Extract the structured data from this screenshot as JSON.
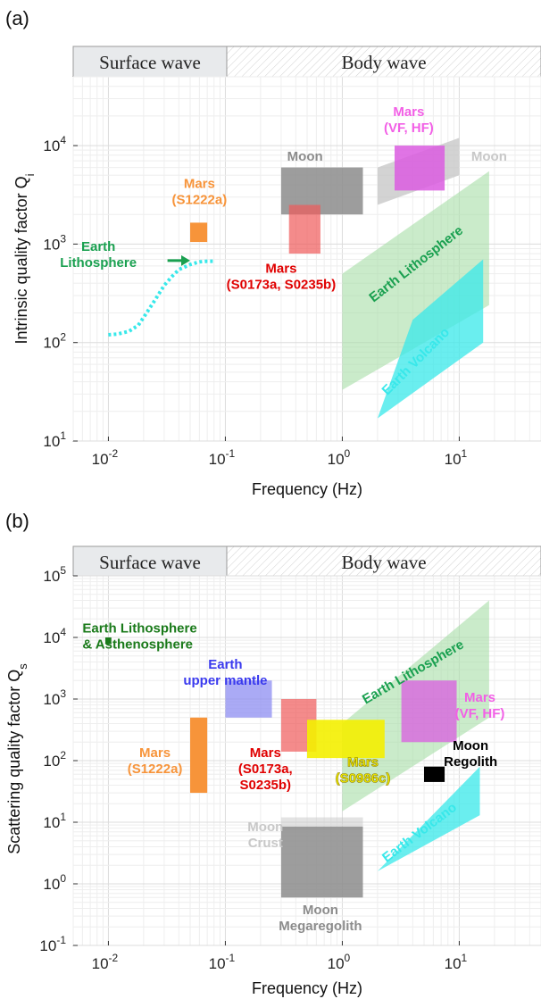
{
  "colors": {
    "mars_orange": "#f7943a",
    "mars_red": "#f05a5a",
    "mars_red_text": "#e00000",
    "mars_magenta": "#da5ce0",
    "mars_magenta_text": "#f25fe6",
    "moon_gray": "#8c8c8c",
    "moon_light": "#c8c8c8",
    "earth_green": "#a6dea6",
    "earth_green_text": "#1aa050",
    "earth_dark_green": "#1a7a1a",
    "earth_cyan": "#38e8ea",
    "earth_blue": "#8e8ef2",
    "earth_blue_text": "#3a3aee",
    "mars_yellow": "#f4f000",
    "black": "#000000"
  },
  "chart_data": [
    {
      "panel_label": "(a)",
      "type": "area",
      "bands": {
        "surface": "Surface wave",
        "body": "Body wave",
        "boundary_hz": 0.1
      },
      "xlabel": "Frequency (Hz)",
      "ylabel": "Intrinsic quality factor Q",
      "ylabel_sub": "i",
      "xscale": "log",
      "yscale": "log",
      "xlim": [
        0.005,
        50
      ],
      "ylim": [
        10,
        50000
      ],
      "x_ticks": [
        0.01,
        0.1,
        1,
        10
      ],
      "x_tick_labels": [
        {
          "base": "10",
          "exp": "-2"
        },
        {
          "base": "10",
          "exp": "-1"
        },
        {
          "base": "10",
          "exp": "0"
        },
        {
          "base": "10",
          "exp": "1"
        }
      ],
      "y_ticks": [
        10,
        100,
        1000,
        10000
      ],
      "y_tick_labels": [
        {
          "base": "10",
          "exp": "1"
        },
        {
          "base": "10",
          "exp": "2"
        },
        {
          "base": "10",
          "exp": "3"
        },
        {
          "base": "10",
          "exp": "4"
        }
      ],
      "grid": true,
      "regions": [
        {
          "name": "Earth Lithosphere (band)",
          "shape": "polygon",
          "color": "earth_green",
          "opacity": 0.6,
          "points": [
            [
              1,
              33
            ],
            [
              1,
              500
            ],
            [
              18,
              5500
            ],
            [
              18,
              240
            ]
          ]
        },
        {
          "name": "Earth Volcano (band)",
          "shape": "polygon",
          "color": "earth_cyan",
          "opacity": 0.75,
          "points": [
            [
              2,
              17
            ],
            [
              4,
              170
            ],
            [
              16,
              700
            ],
            [
              16,
              100
            ]
          ]
        },
        {
          "name": "Moon (band)",
          "shape": "polygon",
          "color": "moon_light",
          "opacity": 0.8,
          "points": [
            [
              2,
              2500
            ],
            [
              2,
              6000
            ],
            [
              10,
              12000
            ],
            [
              10,
              5000
            ]
          ]
        },
        {
          "name": "Moon (box)",
          "shape": "rect",
          "color": "moon_gray",
          "opacity": 0.85,
          "x": [
            0.3,
            1.5
          ],
          "y": [
            2000,
            6000
          ]
        },
        {
          "name": "Mars (S0173a, S0235b)",
          "shape": "rect",
          "color": "mars_red",
          "opacity": 0.7,
          "x": [
            0.35,
            0.65
          ],
          "y": [
            800,
            2500
          ]
        },
        {
          "name": "Mars (VF, HF)",
          "shape": "rect",
          "color": "mars_magenta",
          "opacity": 0.85,
          "x": [
            2.8,
            7.5
          ],
          "y": [
            3500,
            10000
          ]
        },
        {
          "name": "Mars (S1222a)",
          "shape": "rect",
          "color": "mars_orange",
          "opacity": 1.0,
          "x": [
            0.05,
            0.07
          ],
          "y": [
            1050,
            1650
          ]
        }
      ],
      "curves": [
        {
          "name": "Earth Lithosphere",
          "style": "dotted",
          "color": "earth_cyan",
          "x": [
            0.01,
            0.012,
            0.015,
            0.018,
            0.02,
            0.025,
            0.03,
            0.035,
            0.04,
            0.05,
            0.06,
            0.07,
            0.08
          ],
          "y": [
            120,
            122,
            130,
            150,
            180,
            270,
            380,
            470,
            550,
            620,
            660,
            670,
            670
          ]
        }
      ],
      "arrows": [
        {
          "color": "earth_green_text",
          "from": [
            0.032,
            680
          ],
          "to": [
            0.05,
            680
          ]
        }
      ],
      "annotations": [
        {
          "lines": [
            "Mars",
            "(S1222a)"
          ],
          "color": "mars_orange",
          "x": 0.06,
          "y": 3700
        },
        {
          "lines": [
            "Earth",
            "Lithosphere"
          ],
          "color": "earth_green_text",
          "x": 0.0082,
          "y": 850
        },
        {
          "lines": [
            "Mars",
            "(S0173a, S0235b)"
          ],
          "color": "mars_red_text",
          "x": 0.3,
          "y": 510
        },
        {
          "lines": [
            "Moon"
          ],
          "color": "moon_gray",
          "x": 0.48,
          "y": 7000
        },
        {
          "lines": [
            "Mars",
            "(VF, HF)"
          ],
          "color": "mars_magenta_text",
          "x": 3.7,
          "y": 20000
        },
        {
          "lines": [
            "Moon"
          ],
          "color": "moon_light",
          "x": 18,
          "y": 7000
        },
        {
          "lines": [
            "Earth Lithosphere"
          ],
          "color": "earth_green_text",
          "x": 4.5,
          "y": 580,
          "rotate": -38
        },
        {
          "lines": [
            "Earth Volcano"
          ],
          "color": "earth_cyan",
          "x": 4.5,
          "y": 60,
          "rotate": -45
        }
      ]
    },
    {
      "panel_label": "(b)",
      "type": "area",
      "bands": {
        "surface": "Surface wave",
        "body": "Body wave",
        "boundary_hz": 0.1
      },
      "xlabel": "Frequency (Hz)",
      "ylabel": "Scattering quality factor Q",
      "ylabel_sub": "s",
      "xscale": "log",
      "yscale": "log",
      "xlim": [
        0.005,
        50
      ],
      "ylim": [
        0.1,
        100000
      ],
      "x_ticks": [
        0.01,
        0.1,
        1,
        10
      ],
      "x_tick_labels": [
        {
          "base": "10",
          "exp": "-2"
        },
        {
          "base": "10",
          "exp": "-1"
        },
        {
          "base": "10",
          "exp": "0"
        },
        {
          "base": "10",
          "exp": "1"
        }
      ],
      "y_ticks": [
        0.1,
        1,
        10,
        100,
        1000,
        10000,
        100000
      ],
      "y_tick_labels": [
        {
          "base": "10",
          "exp": "-1"
        },
        {
          "base": "10",
          "exp": "0"
        },
        {
          "base": "10",
          "exp": "1"
        },
        {
          "base": "10",
          "exp": "2"
        },
        {
          "base": "10",
          "exp": "3"
        },
        {
          "base": "10",
          "exp": "4"
        },
        {
          "base": "10",
          "exp": "5"
        }
      ],
      "grid": true,
      "regions": [
        {
          "name": "Earth Lithosphere (band)",
          "shape": "polygon",
          "color": "earth_green",
          "opacity": 0.6,
          "points": [
            [
              1,
              15
            ],
            [
              1,
              400
            ],
            [
              18,
              40000
            ],
            [
              18,
              500
            ]
          ]
        },
        {
          "name": "Earth Volcano (band)",
          "shape": "polygon",
          "color": "earth_cyan",
          "opacity": 0.75,
          "points": [
            [
              2,
              1.6
            ],
            [
              15,
              80
            ],
            [
              15,
              13
            ]
          ]
        },
        {
          "name": "Moon Crust",
          "shape": "rect",
          "color": "moon_light",
          "opacity": 0.5,
          "x": [
            0.3,
            1.5
          ],
          "y": [
            7.5,
            12
          ]
        },
        {
          "name": "Moon Megaregolith",
          "shape": "rect",
          "color": "moon_gray",
          "opacity": 0.85,
          "x": [
            0.3,
            1.5
          ],
          "y": [
            0.6,
            8.5
          ]
        },
        {
          "name": "Earth upper mantle",
          "shape": "rect",
          "color": "earth_blue",
          "opacity": 0.75,
          "x": [
            0.1,
            0.25
          ],
          "y": [
            500,
            2000
          ]
        },
        {
          "name": "Mars (S0173a, S0235b)",
          "shape": "rect",
          "color": "mars_red",
          "opacity": 0.7,
          "x": [
            0.3,
            0.6
          ],
          "y": [
            140,
            1000
          ]
        },
        {
          "name": "Mars (S0986c)",
          "shape": "rect",
          "color": "mars_yellow",
          "opacity": 0.9,
          "x": [
            0.5,
            2.3
          ],
          "y": [
            110,
            460
          ]
        },
        {
          "name": "Mars (VF, HF)",
          "shape": "rect",
          "color": "mars_magenta",
          "opacity": 0.75,
          "x": [
            3.2,
            9.5
          ],
          "y": [
            200,
            2000
          ]
        },
        {
          "name": "Mars (S1222a)",
          "shape": "rect",
          "color": "mars_orange",
          "opacity": 1.0,
          "x": [
            0.05,
            0.07
          ],
          "y": [
            30,
            500
          ]
        },
        {
          "name": "Moon Regolith",
          "shape": "rect",
          "color": "black",
          "opacity": 1.0,
          "x": [
            5,
            7.5
          ],
          "y": [
            45,
            80
          ]
        },
        {
          "name": "Earth Lithosphere & Asthenosphere",
          "shape": "rect",
          "color": "earth_dark_green",
          "opacity": 1.0,
          "x": [
            0.0094,
            0.0106
          ],
          "y": [
            7800,
            10000
          ]
        }
      ],
      "annotations": [
        {
          "lines": [
            "Earth Lithosphere",
            "& Asthenosphere"
          ],
          "color": "earth_dark_green",
          "x": 0.006,
          "y": 12000,
          "anchor": "start"
        },
        {
          "lines": [
            "Earth",
            "upper mantle"
          ],
          "color": "earth_blue_text",
          "x": 0.1,
          "y": 3100
        },
        {
          "lines": [
            "Mars",
            "(S1222a)"
          ],
          "color": "mars_orange",
          "x": 0.025,
          "y": 115
        },
        {
          "lines": [
            "Mars",
            "(S0173a,",
            "S0235b)"
          ],
          "color": "mars_red_text",
          "x": 0.22,
          "y": 115
        },
        {
          "lines": [
            "Mars",
            "(S0986c)"
          ],
          "color": "mars_yellow",
          "x": 1.5,
          "y": 80,
          "outline": true
        },
        {
          "lines": [
            "Mars",
            "(VF, HF)"
          ],
          "color": "mars_magenta_text",
          "x": 15,
          "y": 900
        },
        {
          "lines": [
            "Moon",
            "Regolith"
          ],
          "color": "black",
          "x": 12.5,
          "y": 150
        },
        {
          "lines": [
            "Moon",
            "Crust"
          ],
          "color": "moon_light",
          "x": 0.22,
          "y": 7.2
        },
        {
          "lines": [
            "Moon",
            "Megaregolith"
          ],
          "color": "moon_gray",
          "x": 0.65,
          "y": 0.32
        },
        {
          "lines": [
            "Earth Lithosphere"
          ],
          "color": "earth_green_text",
          "x": 4.2,
          "y": 2400,
          "rotate": -30
        },
        {
          "lines": [
            "Earth Volcano"
          ],
          "color": "earth_cyan",
          "x": 4.8,
          "y": 6,
          "rotate": -37
        }
      ]
    }
  ]
}
